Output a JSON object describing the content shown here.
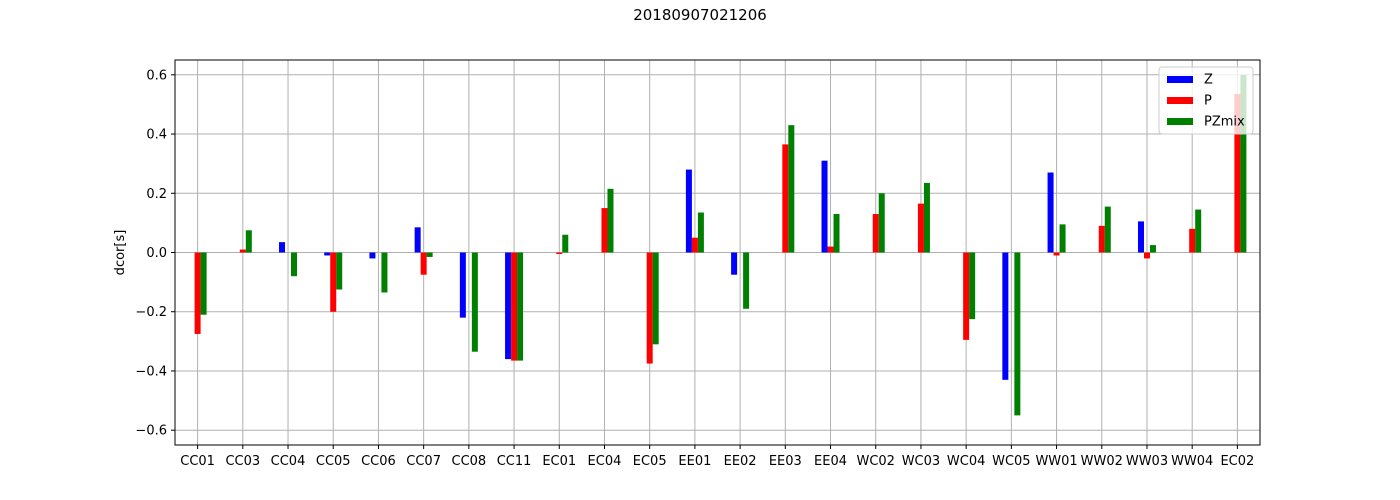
{
  "chart_data": {
    "type": "bar",
    "title": "20180907021206",
    "xlabel": "",
    "ylabel": "dcor[s]",
    "ylim": [
      -0.65,
      0.65
    ],
    "yticks": [
      -0.6,
      -0.4,
      -0.2,
      0.0,
      0.2,
      0.4,
      0.6
    ],
    "ytick_labels": [
      "−0.6",
      "−0.4",
      "−0.2",
      "0.0",
      "0.2",
      "0.4",
      "0.6"
    ],
    "grid": true,
    "legend_position": "top-right",
    "categories": [
      "CC01",
      "CC03",
      "CC04",
      "CC05",
      "CC06",
      "CC07",
      "CC08",
      "CC11",
      "EC01",
      "EC04",
      "EC05",
      "EE01",
      "EE02",
      "EE03",
      "EE04",
      "WC02",
      "WC03",
      "WC04",
      "WC05",
      "WW01",
      "WW02",
      "WW03",
      "WW04",
      "EC02"
    ],
    "series": [
      {
        "name": "Z",
        "color": "#0000ff",
        "values": [
          0.0,
          0.0,
          0.035,
          -0.01,
          -0.02,
          0.085,
          -0.22,
          -0.36,
          0.0,
          0.0,
          0.0,
          0.28,
          -0.075,
          0.0,
          0.31,
          0.0,
          0.0,
          0.0,
          -0.43,
          0.27,
          0.0,
          0.105,
          0.0,
          0.0
        ]
      },
      {
        "name": "P",
        "color": "#ff0000",
        "values": [
          -0.275,
          0.01,
          0.0,
          -0.2,
          0.0,
          -0.075,
          0.0,
          -0.365,
          -0.005,
          0.15,
          -0.375,
          0.05,
          0.0,
          0.365,
          0.02,
          0.13,
          0.165,
          -0.295,
          0.0,
          -0.01,
          0.09,
          -0.02,
          0.08,
          0.535
        ]
      },
      {
        "name": "PZmix",
        "color": "#008000",
        "values": [
          -0.21,
          0.075,
          -0.08,
          -0.125,
          -0.135,
          -0.015,
          -0.335,
          -0.365,
          0.06,
          0.215,
          -0.31,
          0.135,
          -0.19,
          0.43,
          0.13,
          0.2,
          0.235,
          -0.225,
          -0.55,
          0.095,
          0.155,
          0.025,
          0.145,
          0.6
        ]
      }
    ]
  }
}
